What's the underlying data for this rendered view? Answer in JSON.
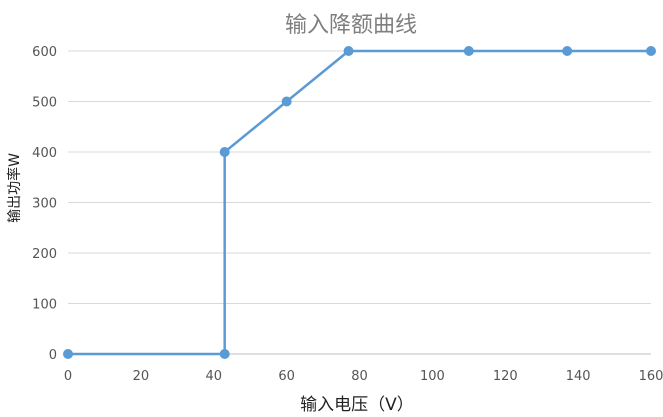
{
  "chart_data": {
    "type": "line",
    "title": "输入降额曲线",
    "xlabel": "输入电压（V）",
    "ylabel": "输出功率W",
    "xlim": [
      0,
      160
    ],
    "ylim": [
      0,
      600
    ],
    "x_ticks": [
      0,
      20,
      40,
      60,
      80,
      100,
      120,
      140,
      160
    ],
    "y_ticks": [
      0,
      100,
      200,
      300,
      400,
      500,
      600
    ],
    "grid": "horizontal",
    "legend": "none",
    "series": [
      {
        "color": "#5b9bd5",
        "points": [
          {
            "x": 0,
            "y": 0
          },
          {
            "x": 43,
            "y": 0
          },
          {
            "x": 43,
            "y": 400
          },
          {
            "x": 60,
            "y": 500
          },
          {
            "x": 77,
            "y": 600
          },
          {
            "x": 110,
            "y": 600
          },
          {
            "x": 137,
            "y": 600
          },
          {
            "x": 160,
            "y": 600
          }
        ]
      }
    ]
  }
}
